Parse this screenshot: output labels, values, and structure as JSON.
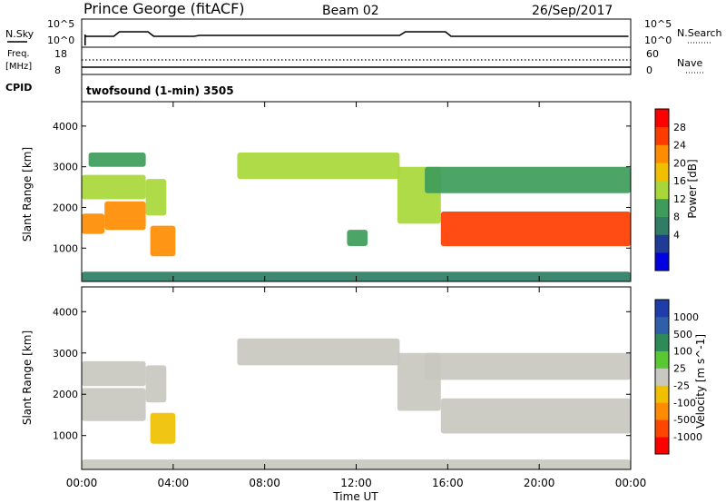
{
  "header": {
    "station": "Prince George (fitACF)",
    "beam": "Beam 02",
    "date": "26/Sep/2017"
  },
  "strips": {
    "nsky_label": "N.Sky",
    "nsearch_label": "N.Search",
    "nsky_ticks": [
      "10^5",
      "10^0"
    ],
    "nsearch_ticks": [
      "10^5",
      "10^0"
    ],
    "freq_label": "Freq.",
    "freq_unit": "[MHz]",
    "freq_ticks": [
      "18",
      "8"
    ],
    "nave_label": "Nave",
    "nave_ticks": [
      "60",
      "0"
    ],
    "cpid_label": "CPID",
    "cpid_value": "twofsound (1-min) 3505"
  },
  "colors": {
    "power_scale": [
      "#0000e0",
      "#1e3c96",
      "#2e7d64",
      "#3e9c5a",
      "#a8d838",
      "#f0c000",
      "#ff8c00",
      "#ff3c00",
      "#ff0000"
    ],
    "velocity_scale": [
      "#1e3caa",
      "#2e5fa8",
      "#2e8b57",
      "#5ac832",
      "#c8c8c0",
      "#f0c000",
      "#ff8c00",
      "#ff4500",
      "#ff0000"
    ]
  },
  "chart_data": [
    {
      "type": "heatmap",
      "title": "Power",
      "xlabel": "Time UT",
      "ylabel": "Slant Range [km]",
      "x_ticks": [
        "00:00",
        "04:00",
        "08:00",
        "12:00",
        "16:00",
        "20:00",
        "00:00"
      ],
      "xlim_hours": [
        0,
        24
      ],
      "y_ticks": [
        "4000",
        "3000",
        "2000",
        "1000"
      ],
      "ylim": [
        180,
        4600
      ],
      "colorbar": {
        "label": "Power [dB]",
        "tick_labels": [
          "28",
          "24",
          "20",
          "16",
          "12",
          "8",
          "4"
        ],
        "range": [
          0,
          30
        ]
      },
      "echo_regions": [
        {
          "t0": 0.0,
          "t1": 1.0,
          "r0": 1350,
          "r1": 1850,
          "level": 24
        },
        {
          "t0": 1.0,
          "t1": 2.8,
          "r0": 1450,
          "r1": 2150,
          "level": 22
        },
        {
          "t0": 0.0,
          "t1": 2.8,
          "r0": 2200,
          "r1": 2800,
          "level": 14
        },
        {
          "t0": 0.3,
          "t1": 2.8,
          "r0": 3000,
          "r1": 3350,
          "level": 10
        },
        {
          "t0": 2.8,
          "t1": 3.7,
          "r0": 1800,
          "r1": 2700,
          "level": 16
        },
        {
          "t0": 3.0,
          "t1": 4.1,
          "r0": 800,
          "r1": 1550,
          "level": 22
        },
        {
          "t0": 6.8,
          "t1": 13.9,
          "r0": 2700,
          "r1": 3350,
          "level": 14
        },
        {
          "t0": 11.6,
          "t1": 12.5,
          "r0": 1050,
          "r1": 1450,
          "level": 10
        },
        {
          "t0": 13.8,
          "t1": 15.7,
          "r0": 1600,
          "r1": 3000,
          "level": 16
        },
        {
          "t0": 15.7,
          "t1": 24.0,
          "r0": 1050,
          "r1": 1900,
          "level": 28
        },
        {
          "t0": 15.0,
          "t1": 24.0,
          "r0": 2350,
          "r1": 3000,
          "level": 12
        },
        {
          "t0": 0.0,
          "t1": 24.0,
          "r0": 180,
          "r1": 420,
          "level": 6
        }
      ]
    },
    {
      "type": "heatmap",
      "title": "Velocity",
      "xlabel": "Time UT",
      "ylabel": "Slant Range [km]",
      "x_ticks": [
        "00:00",
        "04:00",
        "08:00",
        "12:00",
        "16:00",
        "20:00",
        "00:00"
      ],
      "xlim_hours": [
        0,
        24
      ],
      "y_ticks": [
        "4000",
        "3000",
        "2000",
        "1000"
      ],
      "ylim": [
        180,
        4600
      ],
      "colorbar": {
        "label": "Velocity [m s^-1]",
        "tick_labels": [
          "1000",
          "500",
          "100",
          "25",
          "-25",
          "-100",
          "-500",
          "-1000"
        ],
        "range": [
          -1000,
          1000
        ]
      },
      "echo_regions": [
        {
          "t0": 0.0,
          "t1": 2.8,
          "r0": 1350,
          "r1": 2150,
          "velocity": 0
        },
        {
          "t0": 0.0,
          "t1": 2.8,
          "r0": 2200,
          "r1": 2800,
          "velocity": 0
        },
        {
          "t0": 2.8,
          "t1": 3.7,
          "r0": 1800,
          "r1": 2700,
          "velocity": 0
        },
        {
          "t0": 3.0,
          "t1": 4.1,
          "r0": 800,
          "r1": 1550,
          "velocity": -150
        },
        {
          "t0": 6.8,
          "t1": 13.9,
          "r0": 2700,
          "r1": 3350,
          "velocity": 0
        },
        {
          "t0": 13.8,
          "t1": 15.7,
          "r0": 1600,
          "r1": 3000,
          "velocity": 0
        },
        {
          "t0": 15.7,
          "t1": 24.0,
          "r0": 1050,
          "r1": 1900,
          "velocity": 0
        },
        {
          "t0": 15.0,
          "t1": 24.0,
          "r0": 2350,
          "r1": 3000,
          "velocity": 0
        },
        {
          "t0": 0.0,
          "t1": 24.0,
          "r0": 180,
          "r1": 420,
          "velocity": -80
        }
      ]
    }
  ]
}
